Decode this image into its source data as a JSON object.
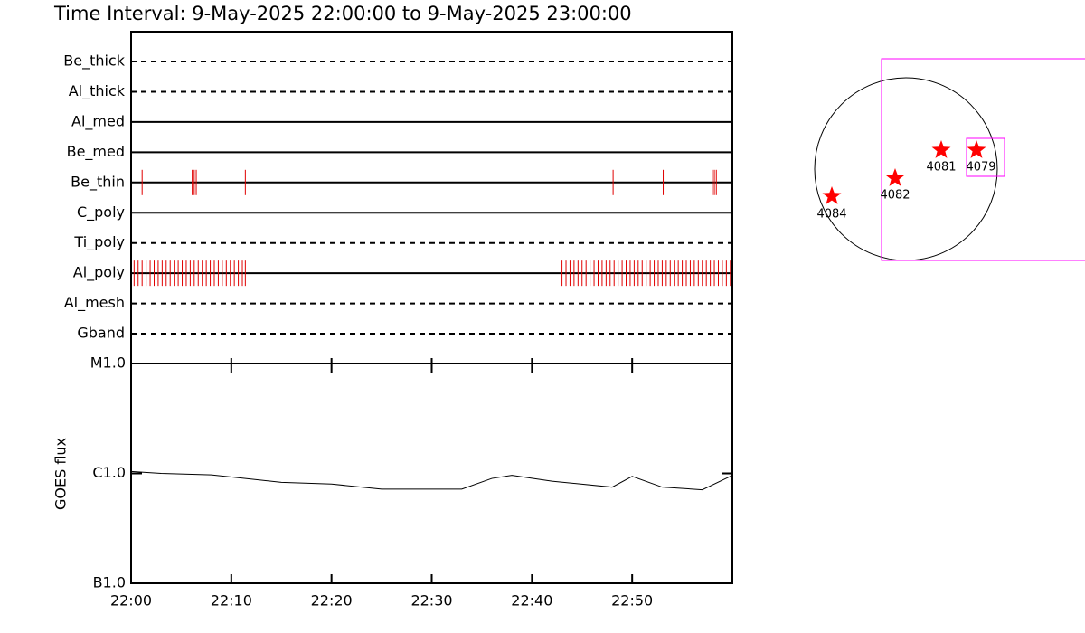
{
  "chart_data": {
    "type": "timeline",
    "title": "Time Interval:  9-May-2025 22:00:00 to  9-May-2025 23:00:00",
    "xlim": [
      0,
      60
    ],
    "xticks": [
      {
        "value": 0,
        "label": "22:00"
      },
      {
        "value": 10,
        "label": "22:10"
      },
      {
        "value": 20,
        "label": "22:20"
      },
      {
        "value": 30,
        "label": "22:30"
      },
      {
        "value": 40,
        "label": "22:40"
      },
      {
        "value": 50,
        "label": "22:50"
      }
    ],
    "filters": [
      {
        "name": "Be_thick",
        "dashed": true,
        "events": []
      },
      {
        "name": "Al_thick",
        "dashed": true,
        "events": []
      },
      {
        "name": "Al_med",
        "dashed": false,
        "events": []
      },
      {
        "name": "Be_med",
        "dashed": false,
        "events": []
      },
      {
        "name": "Be_thin",
        "dashed": false,
        "events": [
          1.1,
          6.1,
          6.3,
          6.5,
          11.4,
          48.1,
          53.1,
          58.0,
          58.2,
          58.4
        ]
      },
      {
        "name": "C_poly",
        "dashed": false,
        "events": []
      },
      {
        "name": "Ti_poly",
        "dashed": true,
        "events": []
      },
      {
        "name": "Al_poly",
        "dashed": false,
        "events": [
          0.3,
          0.7,
          1.1,
          1.5,
          1.9,
          2.3,
          2.7,
          3.1,
          3.5,
          3.9,
          4.3,
          4.7,
          5.1,
          5.5,
          5.9,
          6.3,
          6.7,
          7.1,
          7.5,
          7.9,
          8.3,
          8.7,
          9.1,
          9.5,
          9.9,
          10.3,
          10.7,
          11.1,
          11.4,
          43.0,
          43.4,
          43.8,
          44.2,
          44.6,
          45.0,
          45.4,
          45.8,
          46.2,
          46.6,
          47.0,
          47.4,
          47.8,
          48.2,
          48.6,
          49.0,
          49.4,
          49.8,
          50.2,
          50.6,
          51.0,
          51.4,
          51.8,
          52.2,
          52.6,
          53.0,
          53.4,
          53.8,
          54.2,
          54.6,
          55.0,
          55.4,
          55.8,
          56.2,
          56.6,
          57.0,
          57.4,
          57.8,
          58.2,
          58.6,
          59.0,
          59.4,
          59.8
        ]
      },
      {
        "name": "Al_mesh",
        "dashed": true,
        "events": []
      },
      {
        "name": "Gband",
        "dashed": true,
        "events": []
      }
    ],
    "event_color": "#e00000",
    "goes": {
      "ylabel": "GOES flux",
      "log": true,
      "ylim": [
        1e-07,
        1e-05
      ],
      "yticks": [
        {
          "value": 1e-07,
          "label": "B1.0"
        },
        {
          "value": 1e-06,
          "label": "C1.0"
        },
        {
          "value": 1e-05,
          "label": "M1.0"
        }
      ],
      "x": [
        0,
        3,
        8,
        15,
        20,
        25,
        33,
        36,
        38,
        42,
        48,
        50,
        53,
        57,
        60
      ],
      "values": [
        1.04e-06,
        1e-06,
        9.7e-07,
        8.3e-07,
        8e-07,
        7.2e-07,
        7.2e-07,
        9e-07,
        9.6e-07,
        8.5e-07,
        7.5e-07,
        9.4e-07,
        7.5e-07,
        7.1e-07,
        9.6e-07
      ]
    },
    "regions": [
      "4084",
      "4082",
      "4081",
      "4079"
    ],
    "region_color": "#ff0000",
    "fov_color": "#ff00ff"
  }
}
